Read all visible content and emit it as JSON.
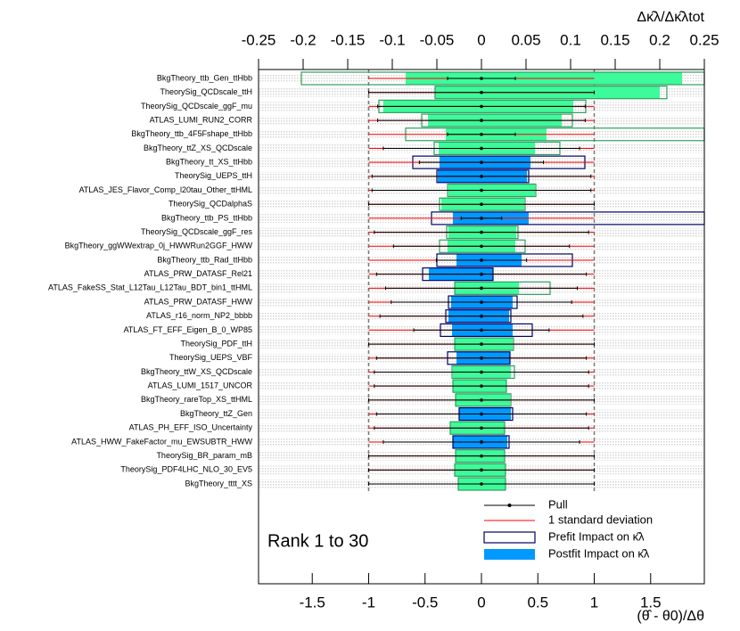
{
  "chart_data": {
    "type": "ranking",
    "x_title": "(θ̂ - θ0)/Δθ",
    "x2_title": "Δκ̂λ/Δκ̂λtot",
    "annotation": "Rank 1 to 30",
    "xlim": [
      -1.976,
      1.976
    ],
    "xticks": [
      -1.5,
      -1,
      -0.5,
      0,
      0.5,
      1,
      1.5
    ],
    "x2lim": [
      -0.25,
      0.25
    ],
    "x2ticks": [
      -0.25,
      -0.2,
      -0.15,
      -0.1,
      -0.05,
      0,
      0.05,
      0.1,
      0.15,
      0.2,
      0.25
    ],
    "reference_lines": [
      -1,
      1
    ],
    "categories": [
      "BkgTheory_ttb_Gen_ttHbb",
      "TheorySig_QCDscale_ttH",
      "TheorySig_QCDscale_ggF_mu",
      "ATLAS_LUMI_RUN2_CORR",
      "BkgTheory_ttb_4F5Fshape_ttHbb",
      "BkgTheory_ttZ_XS_QCDscale",
      "BkgTheory_tt_XS_ttHbb",
      "TheorySig_UEPS_ttH",
      "ATLAS_JES_Flavor_Comp_l20tau_Other_ttHML",
      "TheorySig_QCDalphaS",
      "BkgTheory_ttb_PS_ttHbb",
      "TheorySig_QCDscale_ggF_res",
      "BkgTheory_ggWWextrap_0j_HWWRun2GGF_HWW",
      "BkgTheory_ttb_Rad_ttHbb",
      "ATLAS_PRW_DATASF_Rel21",
      "ATLAS_FakeSS_Stat_L12Tau_L12Tau_BDT_bin1_ttHML",
      "ATLAS_PRW_DATASF_HWW",
      "ATLAS_r16_norm_NP2_bbbb",
      "ATLAS_FT_EFF_Eigen_B_0_WP85",
      "TheorySig_PDF_ttH",
      "TheorySig_UEPS_VBF",
      "BkgTheory_ttW_XS_QCDscale",
      "ATLAS_LUMI_1517_UNCOR",
      "BkgTheory_rareTop_XS_ttHML",
      "BkgTheory_ttZ_Gen",
      "ATLAS_PH_EFF_ISO_Uncertainty",
      "ATLAS_HWW_FakeFactor_mu_EWSUBTR_HWW",
      "TheorySig_BR_param_mB",
      "TheorySig_PDF4LHC_NLO_30_EV5",
      "BkgTheory_tttt_XS"
    ],
    "series": [
      {
        "name": "Pull",
        "color": "#000000",
        "values": [
          0,
          0,
          0,
          0,
          0,
          0,
          0,
          0,
          0,
          0,
          0,
          0,
          0,
          0,
          0,
          0,
          0,
          0,
          0,
          0,
          0,
          0,
          0,
          0,
          0,
          0,
          0,
          0,
          0,
          0
        ],
        "errors": [
          0.3,
          1,
          0.92,
          0.92,
          0.3,
          0.87,
          0.55,
          0.97,
          0.97,
          1,
          0.18,
          0.95,
          0.78,
          0.4,
          0.93,
          0.85,
          0.8,
          0.9,
          0.6,
          1,
          0.93,
          0.95,
          0.95,
          1,
          0.93,
          0.95,
          0.87,
          1,
          1,
          1
        ]
      },
      {
        "name": "1 standard deviation",
        "color": "#ff0000",
        "values": [
          1,
          1,
          1,
          1,
          1,
          1,
          1,
          1,
          1,
          1,
          1,
          1,
          1,
          1,
          1,
          1,
          1,
          1,
          1,
          1,
          1,
          1,
          1,
          1,
          1,
          1,
          1,
          1,
          1,
          1
        ]
      },
      {
        "name": "Prefit Impact on κ̂λ",
        "color": "#000066",
        "low": [
          -0.202,
          -0.052,
          -0.115,
          -0.067,
          -0.085,
          -0.053,
          -0.077,
          -0.05,
          -0.038,
          -0.047,
          -0.056,
          -0.039,
          -0.047,
          -0.05,
          -0.066,
          -0.03,
          -0.037,
          -0.04,
          -0.046,
          -0.03,
          -0.038,
          -0.033,
          -0.032,
          -0.029,
          -0.025,
          -0.035,
          -0.032,
          -0.029,
          -0.03,
          -0.026
        ],
        "high": [
          0.25,
          0.208,
          0.117,
          0.102,
          0.25,
          0.088,
          0.116,
          0.053,
          0.061,
          0.049,
          0.25,
          0.041,
          0.049,
          0.102,
          0.013,
          0.077,
          0.04,
          0.033,
          0.057,
          0.036,
          0.032,
          0.037,
          0.028,
          0.033,
          0.035,
          0.026,
          0.031,
          0.026,
          0.027,
          0.027
        ],
        "colors": [
          "#2e9e5e",
          "#2e9e5e",
          "#2e9e5e",
          "#2e9e5e",
          "#2e9e5e",
          "#2e9e5e",
          "#000066",
          "#000066",
          "#2e9e5e",
          "#2e9e5e",
          "#000066",
          "#2e9e5e",
          "#2e9e5e",
          "#000066",
          "#000066",
          "#2e9e5e",
          "#000066",
          "#000066",
          "#000066",
          "#2e9e5e",
          "#000066",
          "#2e9e5e",
          "#2e9e5e",
          "#2e9e5e",
          "#000066",
          "#2e9e5e",
          "#000066",
          "#2e9e5e",
          "#2e9e5e",
          "#2e9e5e"
        ]
      },
      {
        "name": "Postfit Impact on κ̂λ",
        "color": "#0099ff",
        "low": [
          -0.085,
          -0.052,
          -0.11,
          -0.06,
          -0.04,
          -0.048,
          -0.047,
          -0.049,
          -0.037,
          -0.045,
          -0.032,
          -0.037,
          -0.038,
          -0.028,
          -0.059,
          -0.03,
          -0.034,
          -0.037,
          -0.033,
          -0.03,
          -0.028,
          -0.032,
          -0.032,
          -0.029,
          -0.025,
          -0.035,
          -0.032,
          -0.029,
          -0.03,
          -0.026
        ],
        "high": [
          0.225,
          0.2,
          0.103,
          0.09,
          0.073,
          0.06,
          0.055,
          0.051,
          0.06,
          0.048,
          0.053,
          0.039,
          0.038,
          0.045,
          0.013,
          0.042,
          0.035,
          0.031,
          0.035,
          0.035,
          0.032,
          0.033,
          0.028,
          0.032,
          0.033,
          0.026,
          0.029,
          0.026,
          0.027,
          0.027
        ],
        "colors": [
          "#3dfa9a",
          "#3dfa9a",
          "#3dfa9a",
          "#3dfa9a",
          "#3dfa9a",
          "#3dfa9a",
          "#0099ff",
          "#0099ff",
          "#3dfa9a",
          "#3dfa9a",
          "#0099ff",
          "#3dfa9a",
          "#3dfa9a",
          "#0099ff",
          "#0099ff",
          "#3dfa9a",
          "#0099ff",
          "#0099ff",
          "#0099ff",
          "#3dfa9a",
          "#0099ff",
          "#3dfa9a",
          "#3dfa9a",
          "#3dfa9a",
          "#0099ff",
          "#3dfa9a",
          "#0099ff",
          "#3dfa9a",
          "#3dfa9a",
          "#3dfa9a"
        ]
      }
    ]
  }
}
